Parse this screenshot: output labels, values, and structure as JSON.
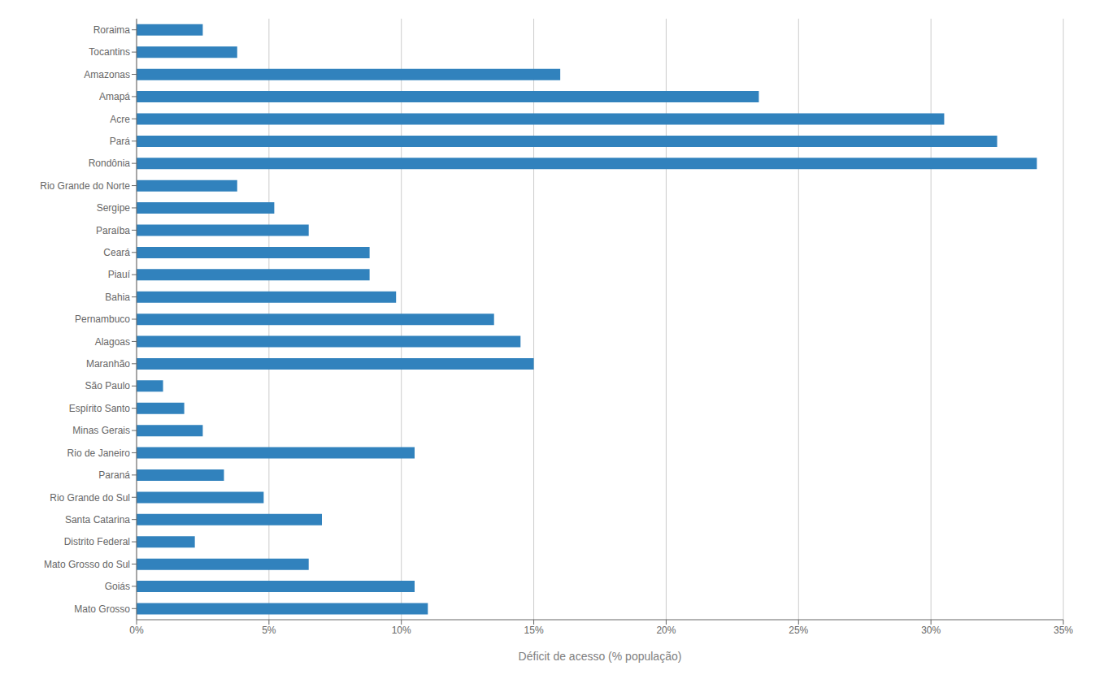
{
  "chart_data": {
    "type": "bar",
    "orientation": "horizontal",
    "categories": [
      "Roraima",
      "Tocantins",
      "Amazonas",
      "Amapá",
      "Acre",
      "Pará",
      "Rondônia",
      "Rio Grande do Norte",
      "Sergipe",
      "Paraíba",
      "Ceará",
      "Piauí",
      "Bahia",
      "Pernambuco",
      "Alagoas",
      "Maranhão",
      "São Paulo",
      "Espírito Santo",
      "Minas Gerais",
      "Rio de Janeiro",
      "Paraná",
      "Rio Grande do Sul",
      "Santa Catarina",
      "Distrito Federal",
      "Mato Grosso do Sul",
      "Goiás",
      "Mato Grosso"
    ],
    "values": [
      2.5,
      3.8,
      16.0,
      23.5,
      30.5,
      32.5,
      34.0,
      3.8,
      5.2,
      6.5,
      8.8,
      8.8,
      9.8,
      13.5,
      14.5,
      15.0,
      1.0,
      1.8,
      2.5,
      10.5,
      3.3,
      4.8,
      7.0,
      2.2,
      6.5,
      10.5,
      11.0
    ],
    "color": "#3182bd",
    "xlabel": "Déficit de acesso (% população)",
    "xlim": [
      0,
      35
    ],
    "xticks": [
      {
        "value": 0,
        "label": "0%"
      },
      {
        "value": 5,
        "label": "5%"
      },
      {
        "value": 10,
        "label": "10%"
      },
      {
        "value": 15,
        "label": "15%"
      },
      {
        "value": 20,
        "label": "20%"
      },
      {
        "value": 25,
        "label": "25%"
      },
      {
        "value": 30,
        "label": "30%"
      },
      {
        "value": 35,
        "label": "35%"
      }
    ],
    "grid": "x"
  }
}
